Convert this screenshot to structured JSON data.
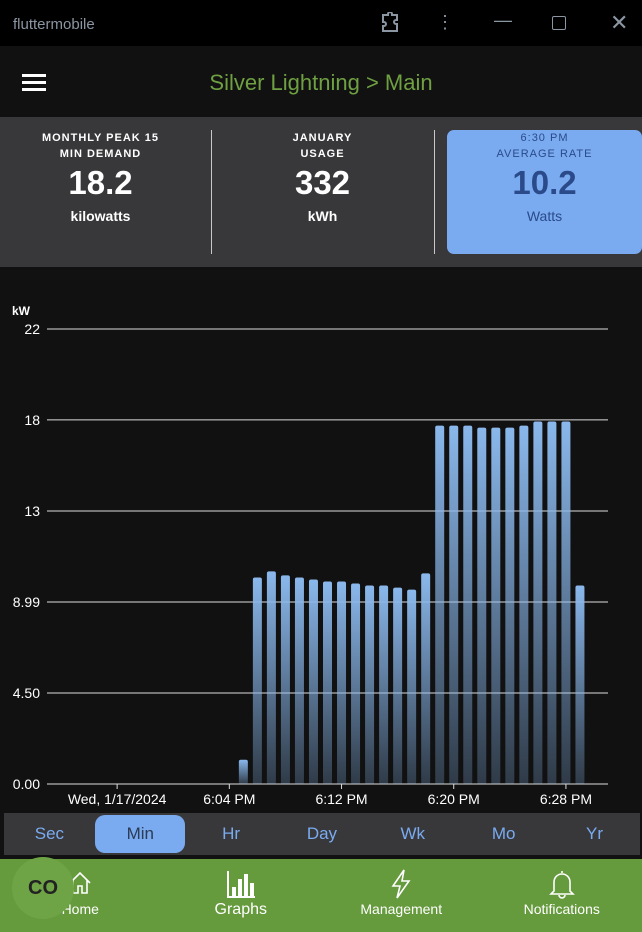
{
  "window": {
    "title": "fluttermobile"
  },
  "header": {
    "title": "Silver Lightning > Main"
  },
  "stats": [
    {
      "label1": "MONTHLY PEAK 15",
      "label2": "MIN DEMAND",
      "value": "18.2",
      "unit": "kilowatts"
    },
    {
      "label1": "JANUARY",
      "label2": "USAGE",
      "value": "332",
      "unit": "kWh"
    },
    {
      "label1": "6:30 PM",
      "label2": "AVERAGE RATE",
      "value": "10.2",
      "unit": "Watts",
      "highlighted": true
    }
  ],
  "colors": {
    "accent_green": "#659a3d",
    "title_green": "#6fa042",
    "highlight_blue": "#7aabf0"
  },
  "chart_data": {
    "type": "bar",
    "ylabel": "kW",
    "ylim": [
      0,
      22.47
    ],
    "yticks": [
      {
        "v": 0,
        "label": "0.00"
      },
      {
        "v": 4.495,
        "label": "4.50"
      },
      {
        "v": 8.99,
        "label": "8.99"
      },
      {
        "v": 13.48,
        "label": "13"
      },
      {
        "v": 17.98,
        "label": "18"
      },
      {
        "v": 22.47,
        "label": "22"
      }
    ],
    "xlim": [
      "5:51 PM",
      "6:31 PM"
    ],
    "xticks": [
      {
        "t": "5:56 PM",
        "label": "Wed, 1/17/2024"
      },
      {
        "t": "6:04 PM",
        "label": "6:04 PM"
      },
      {
        "t": "6:12 PM",
        "label": "6:12 PM"
      },
      {
        "t": "6:20 PM",
        "label": "6:20 PM"
      },
      {
        "t": "6:28 PM",
        "label": "6:28 PM"
      }
    ],
    "x": [
      "6:05 PM",
      "6:06 PM",
      "6:07 PM",
      "6:08 PM",
      "6:09 PM",
      "6:10 PM",
      "6:11 PM",
      "6:12 PM",
      "6:13 PM",
      "6:14 PM",
      "6:15 PM",
      "6:16 PM",
      "6:17 PM",
      "6:18 PM",
      "6:19 PM",
      "6:20 PM",
      "6:21 PM",
      "6:22 PM",
      "6:23 PM",
      "6:24 PM",
      "6:25 PM",
      "6:26 PM",
      "6:27 PM",
      "6:28 PM",
      "6:29 PM"
    ],
    "values": [
      1.2,
      10.2,
      10.5,
      10.3,
      10.2,
      10.1,
      10.0,
      10.0,
      9.9,
      9.8,
      9.8,
      9.7,
      9.6,
      10.4,
      17.7,
      17.7,
      17.7,
      17.6,
      17.6,
      17.6,
      17.7,
      17.9,
      17.9,
      17.9,
      9.8
    ],
    "grid": true,
    "bar_color": "#8ab8ec"
  },
  "ranges": [
    {
      "label": "Sec"
    },
    {
      "label": "Min",
      "selected": true
    },
    {
      "label": "Hr"
    },
    {
      "label": "Day"
    },
    {
      "label": "Wk"
    },
    {
      "label": "Mo"
    },
    {
      "label": "Yr"
    }
  ],
  "nav": [
    {
      "label": "Home",
      "icon": "home-icon"
    },
    {
      "label": "Graphs",
      "icon": "bar-chart-icon",
      "selected": true
    },
    {
      "label": "Management",
      "icon": "lightning-icon"
    },
    {
      "label": "Notifications",
      "icon": "bell-icon"
    }
  ],
  "fab": {
    "label": "CO"
  }
}
